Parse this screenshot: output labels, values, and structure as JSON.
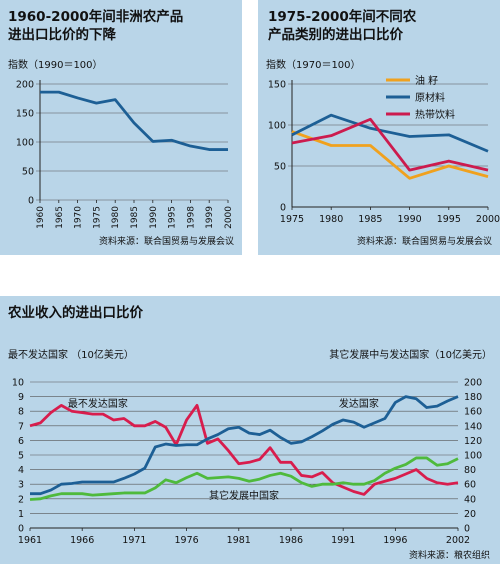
{
  "chart_data": [
    {
      "type": "line",
      "title": "1960-2000年间非洲农产品\n进出口比价的下降",
      "ylabel": "指数（1990＝100）",
      "source": "资料来源：联合国贸易与发展会议",
      "ylim": [
        0,
        200
      ],
      "y_ticks": [
        0,
        50,
        100,
        150,
        200
      ],
      "x_ticks": [
        "1960",
        "1965",
        "1970",
        "1975",
        "1980",
        "1985",
        "1990",
        "1995",
        "1998",
        "1999",
        "2000"
      ],
      "series": [
        {
          "color": "#1d5f95",
          "points": [
            [
              0,
              186
            ],
            [
              1,
              186
            ],
            [
              2,
              176
            ],
            [
              3,
              167
            ],
            [
              4,
              173
            ],
            [
              5,
              133
            ],
            [
              6,
              101
            ],
            [
              7,
              103
            ],
            [
              8,
              93
            ],
            [
              9,
              87
            ],
            [
              10,
              87
            ]
          ]
        }
      ]
    },
    {
      "type": "line",
      "title": "1975-2000年间不同农\n产品类别的进出口比价",
      "ylabel": "指数（1970＝100）",
      "source": "资料来源：联合国贸易与发展会议",
      "ylim": [
        0,
        150
      ],
      "y_ticks": [
        0,
        50,
        100,
        150
      ],
      "x_ticks": [
        "1975",
        "1980",
        "1985",
        "1990",
        "1995",
        "2000"
      ],
      "series": [
        {
          "name": "油 籽",
          "color": "#f0a11e",
          "points": [
            [
              1975,
              92
            ],
            [
              1980,
              75
            ],
            [
              1985,
              75
            ],
            [
              1990,
              35
            ],
            [
              1995,
              50
            ],
            [
              2000,
              37
            ]
          ]
        },
        {
          "name": "原材料",
          "color": "#1d5f95",
          "points": [
            [
              1975,
              88
            ],
            [
              1980,
              112
            ],
            [
              1985,
              96
            ],
            [
              1990,
              86
            ],
            [
              1995,
              88
            ],
            [
              2000,
              68
            ]
          ]
        },
        {
          "name": "热带饮料",
          "color": "#cc1b4e",
          "points": [
            [
              1975,
              78
            ],
            [
              1980,
              87
            ],
            [
              1985,
              107
            ],
            [
              1990,
              45
            ],
            [
              1995,
              56
            ],
            [
              2000,
              45
            ]
          ]
        }
      ]
    },
    {
      "type": "line",
      "title": "农业收入的进出口比价",
      "ylabel_left": "最不发达国家 （10亿美元）",
      "ylabel_right": "其它发展中与发达国家（10亿美元）",
      "source": "资料来源：粮农组织",
      "ylim_left": [
        0,
        10
      ],
      "y_ticks_left": [
        0,
        1,
        2,
        3,
        4,
        5,
        6,
        7,
        8,
        9,
        10
      ],
      "ylim_right": [
        0,
        200
      ],
      "y_ticks_right": [
        0,
        20,
        40,
        60,
        80,
        100,
        120,
        140,
        160,
        180,
        200
      ],
      "x_ticks": [
        "1961",
        "1966",
        "1971",
        "1976",
        "1981",
        "1986",
        "1991",
        "1996",
        "2002"
      ],
      "xlim": [
        1961,
        2002
      ],
      "annotations": [
        "最不发达国家",
        "发达国家",
        "其它发展中国家"
      ],
      "series": [
        {
          "name": "最不发达国家",
          "color": "#d81d4d",
          "axis": "left",
          "points": [
            [
              1961,
              7.0
            ],
            [
              1962,
              7.2
            ],
            [
              1963,
              7.9
            ],
            [
              1964,
              8.4
            ],
            [
              1965,
              8.0
            ],
            [
              1966,
              7.9
            ],
            [
              1967,
              7.8
            ],
            [
              1968,
              7.8
            ],
            [
              1969,
              7.4
            ],
            [
              1970,
              7.5
            ],
            [
              1971,
              7.0
            ],
            [
              1972,
              7.0
            ],
            [
              1973,
              7.3
            ],
            [
              1974,
              6.9
            ],
            [
              1975,
              5.7
            ],
            [
              1976,
              7.4
            ],
            [
              1977,
              8.4
            ],
            [
              1978,
              5.8
            ],
            [
              1979,
              6.1
            ],
            [
              1980,
              5.3
            ],
            [
              1981,
              4.4
            ],
            [
              1982,
              4.5
            ],
            [
              1983,
              4.7
            ],
            [
              1984,
              5.5
            ],
            [
              1985,
              4.5
            ],
            [
              1986,
              4.5
            ],
            [
              1987,
              3.6
            ],
            [
              1988,
              3.5
            ],
            [
              1989,
              3.8
            ],
            [
              1990,
              3.1
            ],
            [
              1991,
              2.8
            ],
            [
              1992,
              2.5
            ],
            [
              1993,
              2.3
            ],
            [
              1994,
              3.0
            ],
            [
              1995,
              3.2
            ],
            [
              1996,
              3.4
            ],
            [
              1997,
              3.7
            ],
            [
              1998,
              4.0
            ],
            [
              1999,
              3.4
            ],
            [
              2000,
              3.1
            ],
            [
              2001,
              3.0
            ],
            [
              2002,
              3.1
            ]
          ]
        },
        {
          "name": "发达国家",
          "color": "#1d5f95",
          "axis": "right",
          "points": [
            [
              1961,
              47
            ],
            [
              1962,
              47
            ],
            [
              1963,
              52
            ],
            [
              1964,
              60
            ],
            [
              1965,
              61
            ],
            [
              1966,
              63
            ],
            [
              1967,
              63
            ],
            [
              1968,
              63
            ],
            [
              1969,
              63
            ],
            [
              1970,
              68
            ],
            [
              1971,
              74
            ],
            [
              1972,
              82
            ],
            [
              1973,
              111
            ],
            [
              1974,
              115
            ],
            [
              1975,
              113
            ],
            [
              1976,
              114
            ],
            [
              1977,
              114
            ],
            [
              1978,
              122
            ],
            [
              1979,
              128
            ],
            [
              1980,
              136
            ],
            [
              1981,
              138
            ],
            [
              1982,
              130
            ],
            [
              1983,
              128
            ],
            [
              1984,
              134
            ],
            [
              1985,
              124
            ],
            [
              1986,
              116
            ],
            [
              1987,
              118
            ],
            [
              1988,
              125
            ],
            [
              1989,
              133
            ],
            [
              1990,
              142
            ],
            [
              1991,
              148
            ],
            [
              1992,
              145
            ],
            [
              1993,
              138
            ],
            [
              1994,
              144
            ],
            [
              1995,
              150
            ],
            [
              1996,
              172
            ],
            [
              1997,
              180
            ],
            [
              1998,
              177
            ],
            [
              1999,
              165
            ],
            [
              2000,
              167
            ],
            [
              2001,
              174
            ],
            [
              2002,
              180
            ]
          ]
        },
        {
          "name": "其它发展中国家",
          "color": "#4fba3c",
          "axis": "right",
          "points": [
            [
              1961,
              39
            ],
            [
              1962,
              40
            ],
            [
              1963,
              44
            ],
            [
              1964,
              47
            ],
            [
              1965,
              47
            ],
            [
              1966,
              47
            ],
            [
              1967,
              45
            ],
            [
              1968,
              46
            ],
            [
              1969,
              47
            ],
            [
              1970,
              48
            ],
            [
              1971,
              48
            ],
            [
              1972,
              48
            ],
            [
              1973,
              55
            ],
            [
              1974,
              66
            ],
            [
              1975,
              62
            ],
            [
              1976,
              69
            ],
            [
              1977,
              75
            ],
            [
              1978,
              68
            ],
            [
              1979,
              69
            ],
            [
              1980,
              70
            ],
            [
              1981,
              68
            ],
            [
              1982,
              64
            ],
            [
              1983,
              67
            ],
            [
              1984,
              72
            ],
            [
              1985,
              75
            ],
            [
              1986,
              71
            ],
            [
              1987,
              62
            ],
            [
              1988,
              57
            ],
            [
              1989,
              60
            ],
            [
              1990,
              60
            ],
            [
              1991,
              62
            ],
            [
              1992,
              60
            ],
            [
              1993,
              60
            ],
            [
              1994,
              65
            ],
            [
              1995,
              75
            ],
            [
              1996,
              82
            ],
            [
              1997,
              87
            ],
            [
              1998,
              96
            ],
            [
              1999,
              96
            ],
            [
              2000,
              86
            ],
            [
              2001,
              88
            ],
            [
              2002,
              95
            ]
          ]
        }
      ]
    }
  ]
}
